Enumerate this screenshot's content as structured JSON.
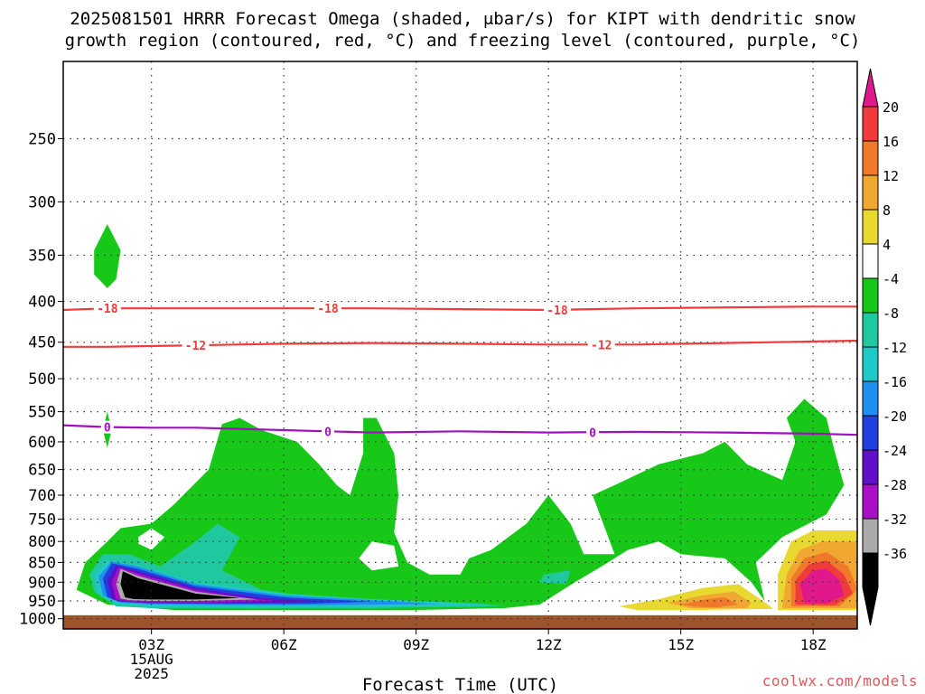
{
  "chart_data": {
    "type": "contour",
    "title_line1": "2025081501 HRRR Forecast Omega (shaded, μbar/s) for KIPT with dendritic snow",
    "title_line2": "growth region (contoured, red, °C) and freezing level (contoured, purple, °C)",
    "xlabel": "Forecast Time (UTC)",
    "ylabel": "",
    "x_ticks": [
      {
        "hour": 3,
        "label": "03Z",
        "sub1": "15AUG",
        "sub2": "2025"
      },
      {
        "hour": 6,
        "label": "06Z"
      },
      {
        "hour": 9,
        "label": "09Z"
      },
      {
        "hour": 12,
        "label": "12Z"
      },
      {
        "hour": 15,
        "label": "15Z"
      },
      {
        "hour": 18,
        "label": "18Z"
      }
    ],
    "xlim_hours": [
      1,
      19
    ],
    "y_scale": "log-pressure",
    "ylim_hPa": [
      1030,
      200
    ],
    "y_ticks": [
      250,
      300,
      350,
      400,
      450,
      500,
      550,
      600,
      650,
      700,
      750,
      800,
      850,
      900,
      950,
      1000
    ],
    "grid": true,
    "colorbar": {
      "labels": [
        "20",
        "16",
        "12",
        "8",
        "4",
        "-4",
        "-8",
        "-12",
        "-16",
        "-20",
        "-24",
        "-28",
        "-32",
        "-36"
      ],
      "colors": [
        "#ef3b3b",
        "#f07a2a",
        "#f0a830",
        "#e8d830",
        "#ffffff",
        "#18c818",
        "#20c8a0",
        "#20c8c8",
        "#2090f0",
        "#2040e0",
        "#6010c8",
        "#a810c8",
        "#aaaaaa",
        "#000000"
      ],
      "top_arrow": "#e0188c",
      "bottom_arrow": "#000000"
    },
    "contours": [
      {
        "name": "-18",
        "color": "#ef3b3b",
        "label_hours": [
          2.0,
          7.0,
          12.2
        ],
        "points": [
          [
            1,
            410
          ],
          [
            2,
            408
          ],
          [
            4,
            408
          ],
          [
            6,
            408
          ],
          [
            8,
            408
          ],
          [
            10,
            409
          ],
          [
            12,
            410
          ],
          [
            14,
            408
          ],
          [
            16,
            407
          ],
          [
            18,
            406
          ],
          [
            19,
            406
          ]
        ]
      },
      {
        "name": "-12",
        "color": "#ef3b3b",
        "label_hours": [
          4.0,
          13.2
        ],
        "points": [
          [
            1,
            456
          ],
          [
            2,
            456
          ],
          [
            4,
            454
          ],
          [
            6,
            452
          ],
          [
            8,
            451
          ],
          [
            10,
            452
          ],
          [
            12,
            453
          ],
          [
            14,
            453
          ],
          [
            16,
            451
          ],
          [
            18,
            449
          ],
          [
            19,
            448
          ]
        ]
      },
      {
        "name": "0",
        "color": "#a010c0",
        "label_hours": [
          2.0,
          7.0,
          13.0
        ],
        "points": [
          [
            1,
            572
          ],
          [
            2,
            575
          ],
          [
            3,
            576
          ],
          [
            4,
            576
          ],
          [
            6,
            580
          ],
          [
            8,
            584
          ],
          [
            10,
            582
          ],
          [
            12,
            584
          ],
          [
            14,
            583
          ],
          [
            16,
            584
          ],
          [
            18,
            586
          ],
          [
            19,
            588
          ]
        ]
      }
    ],
    "shaded_regions": [
      {
        "value": "-4 to -8",
        "color": "#18c818",
        "points": [
          [
            2.0,
            960
          ],
          [
            1.3,
            920
          ],
          [
            1.5,
            850
          ],
          [
            2.0,
            800
          ],
          [
            2.3,
            770
          ],
          [
            3.0,
            760
          ],
          [
            3.5,
            720
          ],
          [
            4.3,
            650
          ],
          [
            4.6,
            570
          ],
          [
            5.0,
            560
          ],
          [
            5.5,
            580
          ],
          [
            6.3,
            600
          ],
          [
            6.8,
            640
          ],
          [
            7.2,
            680
          ],
          [
            7.5,
            700
          ],
          [
            7.8,
            620
          ],
          [
            7.8,
            560
          ],
          [
            8.1,
            560
          ],
          [
            8.5,
            620
          ],
          [
            8.6,
            700
          ],
          [
            8.5,
            780
          ],
          [
            8.8,
            850
          ],
          [
            9.3,
            880
          ],
          [
            10.0,
            880
          ],
          [
            10.2,
            840
          ],
          [
            10.7,
            820
          ],
          [
            11.5,
            760
          ],
          [
            12.0,
            700
          ],
          [
            12.5,
            760
          ],
          [
            12.8,
            830
          ],
          [
            13.5,
            830
          ],
          [
            13.0,
            700
          ],
          [
            13.5,
            680
          ],
          [
            14.5,
            640
          ],
          [
            15.5,
            620
          ],
          [
            16.0,
            600
          ],
          [
            16.5,
            640
          ],
          [
            17.3,
            670
          ],
          [
            17.6,
            600
          ],
          [
            17.4,
            560
          ],
          [
            17.8,
            530
          ],
          [
            18.3,
            560
          ],
          [
            18.5,
            620
          ],
          [
            18.7,
            680
          ],
          [
            18.3,
            740
          ],
          [
            17.3,
            790
          ],
          [
            16.7,
            850
          ],
          [
            16.9,
            950
          ],
          [
            16.6,
            900
          ],
          [
            16.0,
            840
          ],
          [
            15.0,
            830
          ],
          [
            14.5,
            800
          ],
          [
            13.8,
            820
          ],
          [
            13.2,
            860
          ],
          [
            12.6,
            900
          ],
          [
            11.8,
            960
          ],
          [
            11.0,
            970
          ],
          [
            9.0,
            975
          ],
          [
            6.0,
            975
          ],
          [
            3.5,
            975
          ]
        ]
      },
      {
        "value": "-4 to -8",
        "color": "#18c818",
        "points": [
          [
            2.0,
            320
          ],
          [
            2.3,
            345
          ],
          [
            2.2,
            375
          ],
          [
            2.0,
            385
          ],
          [
            1.7,
            370
          ],
          [
            1.7,
            345
          ]
        ]
      },
      {
        "value": "-4 to -8",
        "color": "#18c818",
        "points": [
          [
            2.0,
            550
          ],
          [
            2.1,
            580
          ],
          [
            2.0,
            610
          ],
          [
            1.9,
            580
          ]
        ]
      },
      {
        "value": "-8 to -12",
        "color": "#20c8a0",
        "points": [
          [
            1.7,
            925
          ],
          [
            1.6,
            880
          ],
          [
            1.9,
            830
          ],
          [
            2.5,
            830
          ],
          [
            3.2,
            860
          ],
          [
            4.0,
            800
          ],
          [
            4.5,
            760
          ],
          [
            5.0,
            790
          ],
          [
            4.6,
            870
          ],
          [
            5.5,
            920
          ],
          [
            7.0,
            945
          ],
          [
            9.0,
            950
          ],
          [
            11.0,
            965
          ],
          [
            8.0,
            970
          ],
          [
            5.0,
            970
          ],
          [
            3.0,
            970
          ],
          [
            2.2,
            965
          ]
        ]
      },
      {
        "value": "-8 to -12",
        "color": "#20c8a0",
        "points": [
          [
            11.9,
            880
          ],
          [
            12.5,
            870
          ],
          [
            12.4,
            905
          ],
          [
            11.8,
            900
          ]
        ]
      },
      {
        "value": "-12 to -16",
        "color": "#20c8c8",
        "points": [
          [
            1.8,
            930
          ],
          [
            1.7,
            880
          ],
          [
            2.0,
            845
          ],
          [
            2.6,
            855
          ],
          [
            4.0,
            900
          ],
          [
            6.0,
            930
          ],
          [
            8.0,
            945
          ],
          [
            10.0,
            955
          ],
          [
            11.0,
            962
          ],
          [
            8.0,
            965
          ],
          [
            5.0,
            965
          ],
          [
            3.0,
            965
          ],
          [
            2.2,
            958
          ]
        ]
      },
      {
        "value": "-16 to -20",
        "color": "#2090f0",
        "points": [
          [
            1.9,
            935
          ],
          [
            1.8,
            885
          ],
          [
            2.1,
            848
          ],
          [
            2.7,
            860
          ],
          [
            4.0,
            905
          ],
          [
            6.0,
            935
          ],
          [
            8.0,
            948
          ],
          [
            9.5,
            958
          ],
          [
            7.0,
            962
          ],
          [
            5.0,
            962
          ],
          [
            3.0,
            960
          ],
          [
            2.3,
            955
          ]
        ]
      },
      {
        "value": "-20 to -24",
        "color": "#2040e0",
        "points": [
          [
            2.0,
            940
          ],
          [
            1.9,
            890
          ],
          [
            2.1,
            852
          ],
          [
            2.7,
            866
          ],
          [
            4.0,
            910
          ],
          [
            6.0,
            940
          ],
          [
            8.0,
            952
          ],
          [
            6.5,
            958
          ],
          [
            4.5,
            958
          ],
          [
            3.0,
            957
          ],
          [
            2.3,
            952
          ]
        ]
      },
      {
        "value": "-24 to -28",
        "color": "#6010c8",
        "points": [
          [
            2.1,
            945
          ],
          [
            2.0,
            895
          ],
          [
            2.2,
            858
          ],
          [
            2.7,
            872
          ],
          [
            4.0,
            915
          ],
          [
            5.5,
            942
          ],
          [
            7.0,
            952
          ],
          [
            5.5,
            956
          ],
          [
            4.0,
            956
          ],
          [
            2.8,
            955
          ],
          [
            2.3,
            952
          ]
        ]
      },
      {
        "value": "-28 to -32",
        "color": "#a810c8",
        "points": [
          [
            2.2,
            945
          ],
          [
            2.1,
            900
          ],
          [
            2.25,
            862
          ],
          [
            2.7,
            878
          ],
          [
            4.0,
            920
          ],
          [
            5.0,
            940
          ],
          [
            5.8,
            950
          ],
          [
            4.5,
            954
          ],
          [
            3.0,
            953
          ],
          [
            2.4,
            950
          ]
        ]
      },
      {
        "value": "-32 to -36",
        "color": "#aaaaaa",
        "points": [
          [
            2.3,
            943
          ],
          [
            2.2,
            905
          ],
          [
            2.3,
            866
          ],
          [
            2.7,
            884
          ],
          [
            4.0,
            925
          ],
          [
            5.0,
            940
          ],
          [
            5.4,
            946
          ],
          [
            4.0,
            950
          ],
          [
            3.0,
            950
          ],
          [
            2.5,
            948
          ]
        ]
      },
      {
        "value": "< -36",
        "color": "#000000",
        "points": [
          [
            2.4,
            940
          ],
          [
            2.3,
            905
          ],
          [
            2.35,
            872
          ],
          [
            2.7,
            890
          ],
          [
            4.0,
            930
          ],
          [
            5.0,
            942
          ],
          [
            4.0,
            946
          ],
          [
            3.0,
            946
          ],
          [
            2.6,
            945
          ]
        ]
      },
      {
        "value": "4 to 8",
        "color": "#e8d830",
        "points": [
          [
            13.6,
            965
          ],
          [
            14.5,
            945
          ],
          [
            15.5,
            915
          ],
          [
            16.3,
            905
          ],
          [
            16.8,
            945
          ],
          [
            17.1,
            972
          ],
          [
            15.5,
            975
          ],
          [
            14.0,
            975
          ]
        ]
      },
      {
        "value": "8 to 12",
        "color": "#f0a830",
        "points": [
          [
            14.7,
            955
          ],
          [
            15.5,
            935
          ],
          [
            16.2,
            925
          ],
          [
            16.6,
            955
          ],
          [
            16.5,
            970
          ],
          [
            15.2,
            970
          ]
        ]
      },
      {
        "value": "12 to 16",
        "color": "#f07a2a",
        "points": [
          [
            15.0,
            960
          ],
          [
            15.6,
            945
          ],
          [
            16.0,
            940
          ],
          [
            16.3,
            960
          ],
          [
            15.8,
            968
          ],
          [
            15.3,
            966
          ]
        ]
      },
      {
        "value": "4 to 8",
        "color": "#e8d830",
        "points": [
          [
            17.2,
            975
          ],
          [
            17.2,
            880
          ],
          [
            17.5,
            800
          ],
          [
            18.0,
            775
          ],
          [
            19.0,
            775
          ],
          [
            19.0,
            975
          ]
        ]
      },
      {
        "value": "8 to 12",
        "color": "#f0a830",
        "points": [
          [
            17.3,
            970
          ],
          [
            17.4,
            880
          ],
          [
            17.7,
            820
          ],
          [
            18.2,
            800
          ],
          [
            19.0,
            800
          ],
          [
            19.0,
            970
          ]
        ]
      },
      {
        "value": "12 to 16",
        "color": "#f07a2a",
        "points": [
          [
            17.5,
            965
          ],
          [
            17.5,
            890
          ],
          [
            17.8,
            840
          ],
          [
            18.3,
            825
          ],
          [
            18.8,
            860
          ],
          [
            19.0,
            920
          ],
          [
            18.6,
            965
          ]
        ]
      },
      {
        "value": "16 to 20",
        "color": "#ef3b3b",
        "points": [
          [
            17.6,
            960
          ],
          [
            17.6,
            895
          ],
          [
            17.9,
            855
          ],
          [
            18.3,
            845
          ],
          [
            18.7,
            880
          ],
          [
            18.9,
            930
          ],
          [
            18.5,
            962
          ]
        ]
      },
      {
        "value": "> 20",
        "color": "#e0188c",
        "points": [
          [
            17.8,
            955
          ],
          [
            17.7,
            905
          ],
          [
            18.0,
            870
          ],
          [
            18.3,
            865
          ],
          [
            18.6,
            895
          ],
          [
            18.7,
            935
          ],
          [
            18.3,
            958
          ]
        ]
      }
    ],
    "white_holes": [
      {
        "points": [
          [
            2.7,
            790
          ],
          [
            3.0,
            770
          ],
          [
            3.3,
            790
          ],
          [
            3.0,
            820
          ],
          [
            2.7,
            805
          ]
        ]
      },
      {
        "points": [
          [
            7.7,
            840
          ],
          [
            8.0,
            800
          ],
          [
            8.5,
            810
          ],
          [
            8.6,
            860
          ],
          [
            8.0,
            870
          ]
        ]
      }
    ],
    "surface_top_hPa": 990,
    "surface_color": "#a0522d",
    "credit": "coolwx.com/models"
  }
}
